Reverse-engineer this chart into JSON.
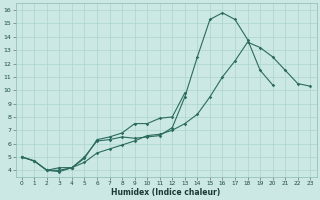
{
  "xlabel": "Humidex (Indice chaleur)",
  "bg_color": "#cce8e4",
  "line_color": "#2a6b5e",
  "grid_color": "#aad4cc",
  "xlim": [
    -0.5,
    23.5
  ],
  "ylim": [
    3.5,
    16.5
  ],
  "xticks": [
    0,
    1,
    2,
    3,
    4,
    5,
    6,
    7,
    8,
    9,
    10,
    11,
    12,
    13,
    14,
    15,
    16,
    17,
    18,
    19,
    20,
    21,
    22,
    23
  ],
  "yticks": [
    4,
    5,
    6,
    7,
    8,
    9,
    10,
    11,
    12,
    13,
    14,
    15,
    16
  ],
  "series1_x": [
    0,
    1,
    2,
    3,
    4,
    5,
    6,
    7,
    8,
    9,
    10,
    11,
    12,
    13,
    14,
    15,
    16,
    17,
    18,
    19,
    20
  ],
  "series1_y": [
    5.0,
    4.7,
    4.0,
    3.9,
    4.2,
    5.0,
    6.2,
    6.3,
    6.5,
    6.4,
    6.5,
    6.6,
    7.2,
    9.5,
    12.5,
    15.3,
    15.8,
    15.3,
    13.8,
    11.5,
    10.4
  ],
  "series2_x": [
    0,
    1,
    2,
    3,
    4,
    5,
    6,
    7,
    8,
    9,
    10,
    11,
    12,
    13,
    14,
    15,
    16,
    17,
    18,
    19,
    20,
    21,
    22,
    23
  ],
  "series2_y": [
    5.0,
    4.7,
    4.0,
    4.0,
    4.2,
    4.6,
    5.3,
    5.6,
    5.9,
    6.2,
    6.6,
    6.7,
    7.0,
    7.5,
    8.2,
    9.5,
    11.0,
    12.2,
    13.6,
    13.2,
    12.5,
    11.5,
    10.5,
    10.3
  ],
  "series3_x": [
    0,
    1,
    2,
    3,
    4,
    5,
    6,
    7,
    8,
    9,
    10,
    11,
    12,
    13
  ],
  "series3_y": [
    5.0,
    4.7,
    4.0,
    4.2,
    4.2,
    4.9,
    6.3,
    6.5,
    6.8,
    7.5,
    7.5,
    7.9,
    8.0,
    9.8
  ]
}
